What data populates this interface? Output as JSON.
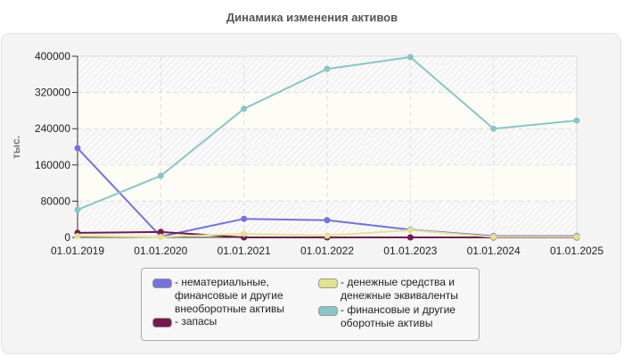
{
  "title": "Динамика изменения активов",
  "y_axis_label": "тыс.",
  "chart_data": {
    "type": "line",
    "title": "Динамика изменения активов",
    "xlabel": "",
    "ylabel": "тыс.",
    "ylim": [
      0,
      400000
    ],
    "yticks": [
      0,
      80000,
      160000,
      240000,
      320000,
      400000
    ],
    "grid": true,
    "legend_position": "bottom",
    "categories": [
      "01.01.2019",
      "01.01.2020",
      "01.01.2021",
      "01.01.2022",
      "01.01.2023",
      "01.01.2024",
      "01.01.2025"
    ],
    "series": [
      {
        "name": "нематериальные, финансовые и другие внеоборотные активы",
        "color": "#7472e0",
        "values": [
          197000,
          2000,
          41000,
          38000,
          17000,
          3000,
          3000
        ]
      },
      {
        "name": "запасы",
        "color": "#75194f",
        "values": [
          10000,
          12000,
          0,
          0,
          0,
          0,
          0
        ]
      },
      {
        "name": "денежные средства и денежные эквиваленты",
        "color": "#e3e38e",
        "values": [
          3000,
          1000,
          8000,
          4000,
          16000,
          1000,
          1000
        ]
      },
      {
        "name": "финансовые и другие оборотные активы",
        "color": "#86c6c6",
        "values": [
          61000,
          136000,
          284000,
          372000,
          398000,
          240000,
          258000
        ]
      }
    ]
  },
  "legend": {
    "items": [
      {
        "label": "- нематериальные,\nфинансовые и другие\nвнеоборотные активы",
        "color": "#7472e0"
      },
      {
        "label": "- запасы",
        "color": "#75194f"
      },
      {
        "label": "- денежные средства и\nденежные эквиваленты",
        "color": "#e3e38e"
      },
      {
        "label": "- финансовые и другие\nоборотные активы",
        "color": "#86c6c6"
      }
    ]
  }
}
